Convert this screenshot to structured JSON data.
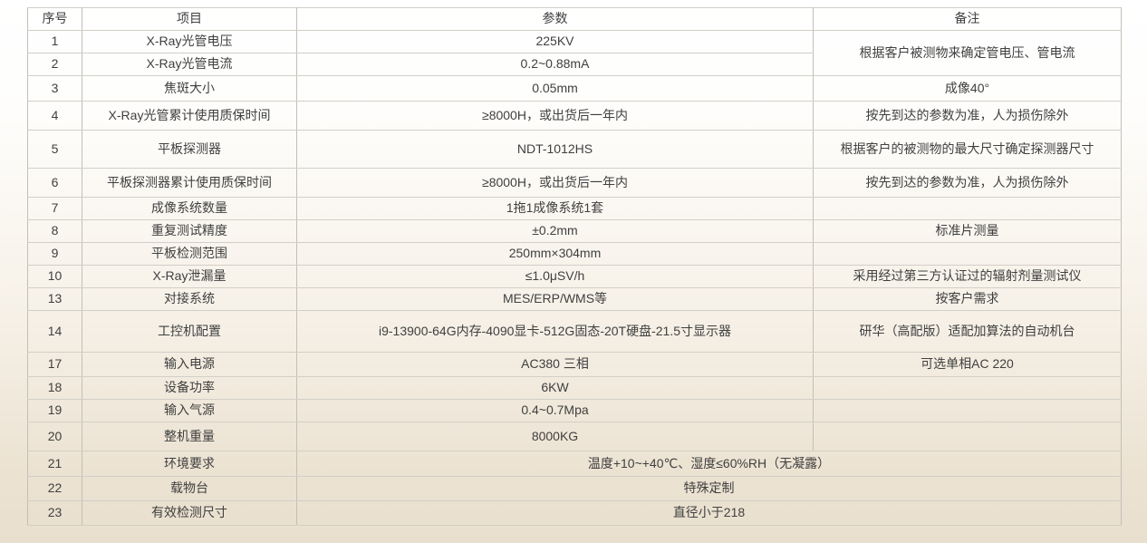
{
  "table": {
    "columns": [
      {
        "label": "序号"
      },
      {
        "label": "项目"
      },
      {
        "label": "参数"
      },
      {
        "label": "备注"
      }
    ],
    "rows": [
      {
        "no": "1",
        "item": "X-Ray光管电压",
        "param": "225KV",
        "remark": "根据客户被测物来确定管电压、管电流",
        "remark_rowspan": 2
      },
      {
        "no": "2",
        "item": "X-Ray光管电流",
        "param": "0.2~0.88mA",
        "remark_skip": true
      },
      {
        "no": "3",
        "item": "焦斑大小",
        "param": "0.05mm",
        "remark": "成像40°"
      },
      {
        "no": "4",
        "item": "X-Ray光管累计使用质保时间",
        "param": "≥8000H，或出货后一年内",
        "remark": "按先到达的参数为准，人为损伤除外"
      },
      {
        "no": "5",
        "item": "平板探测器",
        "param": "NDT-1012HS",
        "remark": "根据客户的被测物的最大尺寸确定探测器尺寸"
      },
      {
        "no": "6",
        "item": "平板探测器累计使用质保时间",
        "param": "≥8000H，或出货后一年内",
        "remark": "按先到达的参数为准，人为损伤除外"
      },
      {
        "no": "7",
        "item": "成像系统数量",
        "param": "1拖1成像系统1套",
        "remark": ""
      },
      {
        "no": "8",
        "item": "重复测试精度",
        "param": "±0.2mm",
        "remark": "标准片测量"
      },
      {
        "no": "9",
        "item": "平板检测范围",
        "param": "250mm×304mm",
        "remark": ""
      },
      {
        "no": "10",
        "item": "X-Ray泄漏量",
        "param": "≤1.0μSV/h",
        "remark": "采用经过第三方认证过的辐射剂量测试仪"
      },
      {
        "no": "13",
        "item": "对接系统",
        "param": "MES/ERP/WMS等",
        "remark": "按客户需求"
      },
      {
        "no": "14",
        "item": "工控机配置",
        "param": "i9-13900-64G内存-4090显卡-512G固态-20T硬盘-21.5寸显示器",
        "remark": "研华（高配版）适配加算法的自动机台"
      },
      {
        "no": "17",
        "item": "输入电源",
        "param": "AC380 三相",
        "remark": "可选单相AC 220"
      },
      {
        "no": "18",
        "item": "设备功率",
        "param": "6KW",
        "remark": ""
      },
      {
        "no": "19",
        "item": "输入气源",
        "param": "0.4~0.7Mpa",
        "remark": ""
      },
      {
        "no": "20",
        "item": "整机重量",
        "param": "8000KG",
        "remark": ""
      },
      {
        "no": "21",
        "item": "环境要求",
        "param": "温度+10~+40℃、湿度≤60%RH（无凝露）",
        "param_colspan": 2
      },
      {
        "no": "22",
        "item": "载物台",
        "param": "特殊定制",
        "param_colspan": 2
      },
      {
        "no": "23",
        "item": "有效检测尺寸",
        "param": "直径小于218",
        "param_colspan": 2
      }
    ]
  }
}
